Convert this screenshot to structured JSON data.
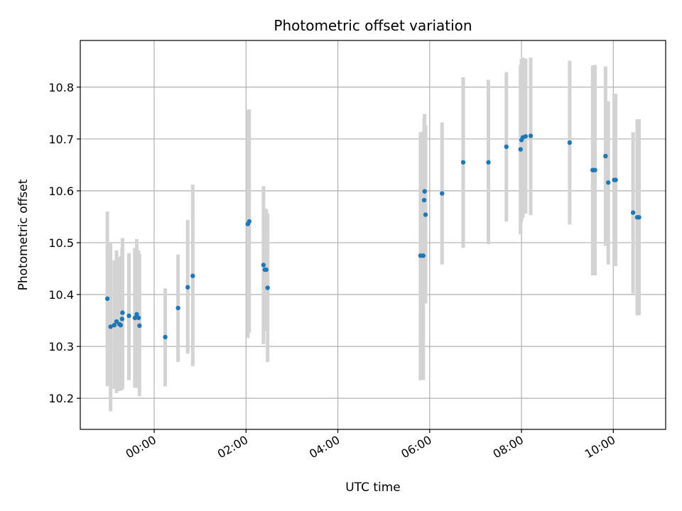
{
  "chart_data": {
    "type": "scatter",
    "title": "Photometric offset variation",
    "xlabel": "UTC time",
    "ylabel": "Photometric offset",
    "x_unit": "hours",
    "xlim": [
      -1.61,
      11.14
    ],
    "ylim": [
      10.14,
      10.89
    ],
    "grid": true,
    "x_ticks": [
      {
        "value": 0,
        "label": "00:00"
      },
      {
        "value": 2,
        "label": "02:00"
      },
      {
        "value": 4,
        "label": "04:00"
      },
      {
        "value": 6,
        "label": "06:00"
      },
      {
        "value": 8,
        "label": "08:00"
      },
      {
        "value": 10,
        "label": "10:00"
      }
    ],
    "y_ticks": [
      {
        "value": 10.2,
        "label": "10.2"
      },
      {
        "value": 10.3,
        "label": "10.3"
      },
      {
        "value": 10.4,
        "label": "10.4"
      },
      {
        "value": 10.5,
        "label": "10.5"
      },
      {
        "value": 10.6,
        "label": "10.6"
      },
      {
        "value": 10.7,
        "label": "10.7"
      },
      {
        "value": 10.8,
        "label": "10.8"
      }
    ],
    "error_color": "#d3d3d3",
    "point_color": "#1f77b4",
    "points": [
      {
        "x": -1.02,
        "y": 10.392,
        "lo": 10.223,
        "hi": 10.56
      },
      {
        "x": -0.95,
        "y": 10.338,
        "lo": 10.175,
        "hi": 10.5
      },
      {
        "x": -0.87,
        "y": 10.341,
        "lo": 10.218,
        "hi": 10.466
      },
      {
        "x": -0.82,
        "y": 10.348,
        "lo": 10.21,
        "hi": 10.485
      },
      {
        "x": -0.76,
        "y": 10.343,
        "lo": 10.214,
        "hi": 10.471
      },
      {
        "x": -0.73,
        "y": 10.341,
        "lo": 10.215,
        "hi": 10.474
      },
      {
        "x": -0.69,
        "y": 10.365,
        "lo": 10.22,
        "hi": 10.509
      },
      {
        "x": -0.7,
        "y": 10.353,
        "lo": 10.216,
        "hi": 10.49
      },
      {
        "x": -0.55,
        "y": 10.359,
        "lo": 10.235,
        "hi": 10.48
      },
      {
        "x": -0.42,
        "y": 10.355,
        "lo": 10.22,
        "hi": 10.49
      },
      {
        "x": -0.38,
        "y": 10.362,
        "lo": 10.22,
        "hi": 10.507
      },
      {
        "x": -0.34,
        "y": 10.355,
        "lo": 10.23,
        "hi": 10.485
      },
      {
        "x": -0.32,
        "y": 10.34,
        "lo": 10.204,
        "hi": 10.478
      },
      {
        "x": 0.24,
        "y": 10.318,
        "lo": 10.223,
        "hi": 10.412
      },
      {
        "x": 0.52,
        "y": 10.374,
        "lo": 10.27,
        "hi": 10.477
      },
      {
        "x": 0.73,
        "y": 10.414,
        "lo": 10.286,
        "hi": 10.544
      },
      {
        "x": 0.84,
        "y": 10.436,
        "lo": 10.262,
        "hi": 10.612
      },
      {
        "x": 2.04,
        "y": 10.536,
        "lo": 10.316,
        "hi": 10.756
      },
      {
        "x": 2.07,
        "y": 10.541,
        "lo": 10.327,
        "hi": 10.757
      },
      {
        "x": 2.38,
        "y": 10.457,
        "lo": 10.304,
        "hi": 10.609
      },
      {
        "x": 2.41,
        "y": 10.448,
        "lo": 10.33,
        "hi": 10.566
      },
      {
        "x": 2.44,
        "y": 10.448,
        "lo": 10.332,
        "hi": 10.565
      },
      {
        "x": 2.47,
        "y": 10.413,
        "lo": 10.27,
        "hi": 10.556
      },
      {
        "x": 5.8,
        "y": 10.475,
        "lo": 10.235,
        "hi": 10.713
      },
      {
        "x": 5.86,
        "y": 10.475,
        "lo": 10.235,
        "hi": 10.714
      },
      {
        "x": 5.88,
        "y": 10.582,
        "lo": 10.42,
        "hi": 10.74
      },
      {
        "x": 5.89,
        "y": 10.599,
        "lo": 10.45,
        "hi": 10.748
      },
      {
        "x": 5.91,
        "y": 10.554,
        "lo": 10.383,
        "hi": 10.726
      },
      {
        "x": 6.27,
        "y": 10.595,
        "lo": 10.458,
        "hi": 10.732
      },
      {
        "x": 6.73,
        "y": 10.655,
        "lo": 10.49,
        "hi": 10.819
      },
      {
        "x": 7.28,
        "y": 10.655,
        "lo": 10.497,
        "hi": 10.814
      },
      {
        "x": 7.67,
        "y": 10.685,
        "lo": 10.541,
        "hi": 10.829
      },
      {
        "x": 7.98,
        "y": 10.68,
        "lo": 10.516,
        "hi": 10.843
      },
      {
        "x": 8.0,
        "y": 10.698,
        "lo": 10.54,
        "hi": 10.855
      },
      {
        "x": 8.03,
        "y": 10.703,
        "lo": 10.548,
        "hi": 10.857
      },
      {
        "x": 8.09,
        "y": 10.705,
        "lo": 10.556,
        "hi": 10.855
      },
      {
        "x": 8.2,
        "y": 10.706,
        "lo": 10.553,
        "hi": 10.857
      },
      {
        "x": 9.05,
        "y": 10.693,
        "lo": 10.535,
        "hi": 10.851
      },
      {
        "x": 9.55,
        "y": 10.64,
        "lo": 10.437,
        "hi": 10.842
      },
      {
        "x": 9.6,
        "y": 10.64,
        "lo": 10.437,
        "hi": 10.843
      },
      {
        "x": 9.83,
        "y": 10.667,
        "lo": 10.494,
        "hi": 10.84
      },
      {
        "x": 9.89,
        "y": 10.616,
        "lo": 10.458,
        "hi": 10.773
      },
      {
        "x": 10.02,
        "y": 10.621,
        "lo": 10.455,
        "hi": 10.787
      },
      {
        "x": 10.05,
        "y": 10.621,
        "lo": 10.455,
        "hi": 10.787
      },
      {
        "x": 10.43,
        "y": 10.558,
        "lo": 10.402,
        "hi": 10.713
      },
      {
        "x": 10.52,
        "y": 10.549,
        "lo": 10.36,
        "hi": 10.738
      },
      {
        "x": 10.56,
        "y": 10.549,
        "lo": 10.36,
        "hi": 10.738
      }
    ]
  }
}
